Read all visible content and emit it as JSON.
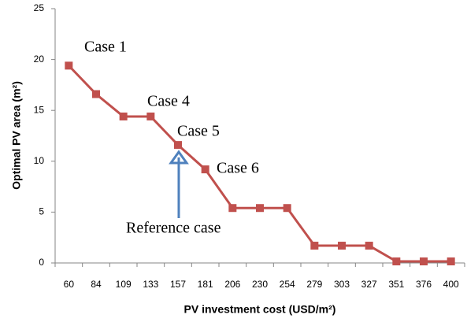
{
  "chart_data": {
    "type": "line",
    "x_label": "PV investment cost (USD/m²)",
    "y_label": "Optimal PV area (m²)",
    "categories": [
      "60",
      "84",
      "109",
      "133",
      "157",
      "181",
      "206",
      "230",
      "254",
      "279",
      "303",
      "327",
      "351",
      "376",
      "400"
    ],
    "series": [
      {
        "color": "#c0504d",
        "values": [
          19.4,
          16.6,
          14.4,
          14.4,
          11.6,
          9.2,
          5.4,
          5.4,
          5.4,
          1.7,
          1.7,
          1.7,
          0.15,
          0.15,
          0.15
        ]
      }
    ],
    "ylim": [
      0,
      25
    ],
    "yticks": [
      0,
      5,
      10,
      15,
      20,
      25
    ],
    "grid": false,
    "annotations": [
      "Case 1",
      "Case 4",
      "Case 5",
      "Case 6",
      "Reference case"
    ]
  }
}
